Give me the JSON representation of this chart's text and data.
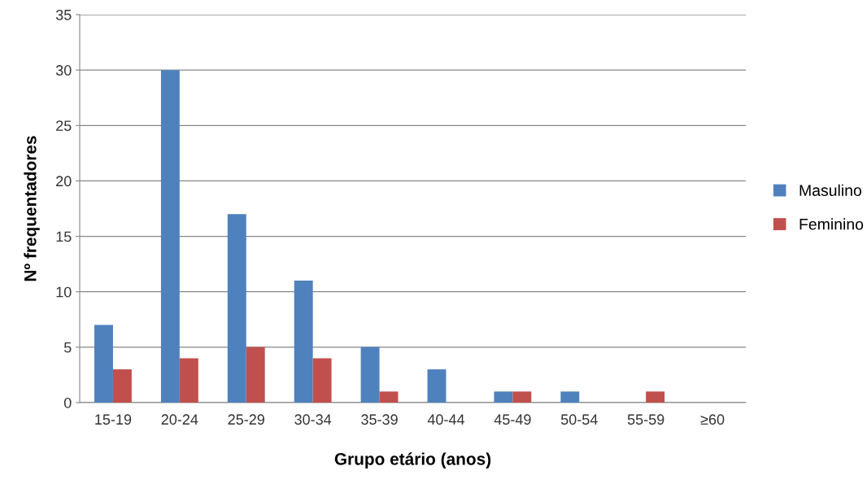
{
  "chart_data": {
    "type": "bar",
    "xlabel": "Grupo etário (anos)",
    "ylabel": "Nº frequentadores",
    "categories": [
      "15-19",
      "20-24",
      "25-29",
      "30-34",
      "35-39",
      "40-44",
      "45-49",
      "50-54",
      "55-59",
      "≥60"
    ],
    "series": [
      {
        "name": "Masulino",
        "color": "#4f81bd",
        "values": [
          7,
          30,
          17,
          11,
          5,
          3,
          1,
          1,
          0,
          0
        ]
      },
      {
        "name": "Feminino",
        "color": "#c0504d",
        "values": [
          3,
          4,
          5,
          4,
          1,
          0,
          1,
          0,
          1,
          0
        ]
      }
    ],
    "ylim": [
      0,
      35
    ],
    "yticks": [
      0,
      5,
      10,
      15,
      20,
      25,
      30,
      35
    ],
    "grid": "y",
    "legend": "right"
  }
}
